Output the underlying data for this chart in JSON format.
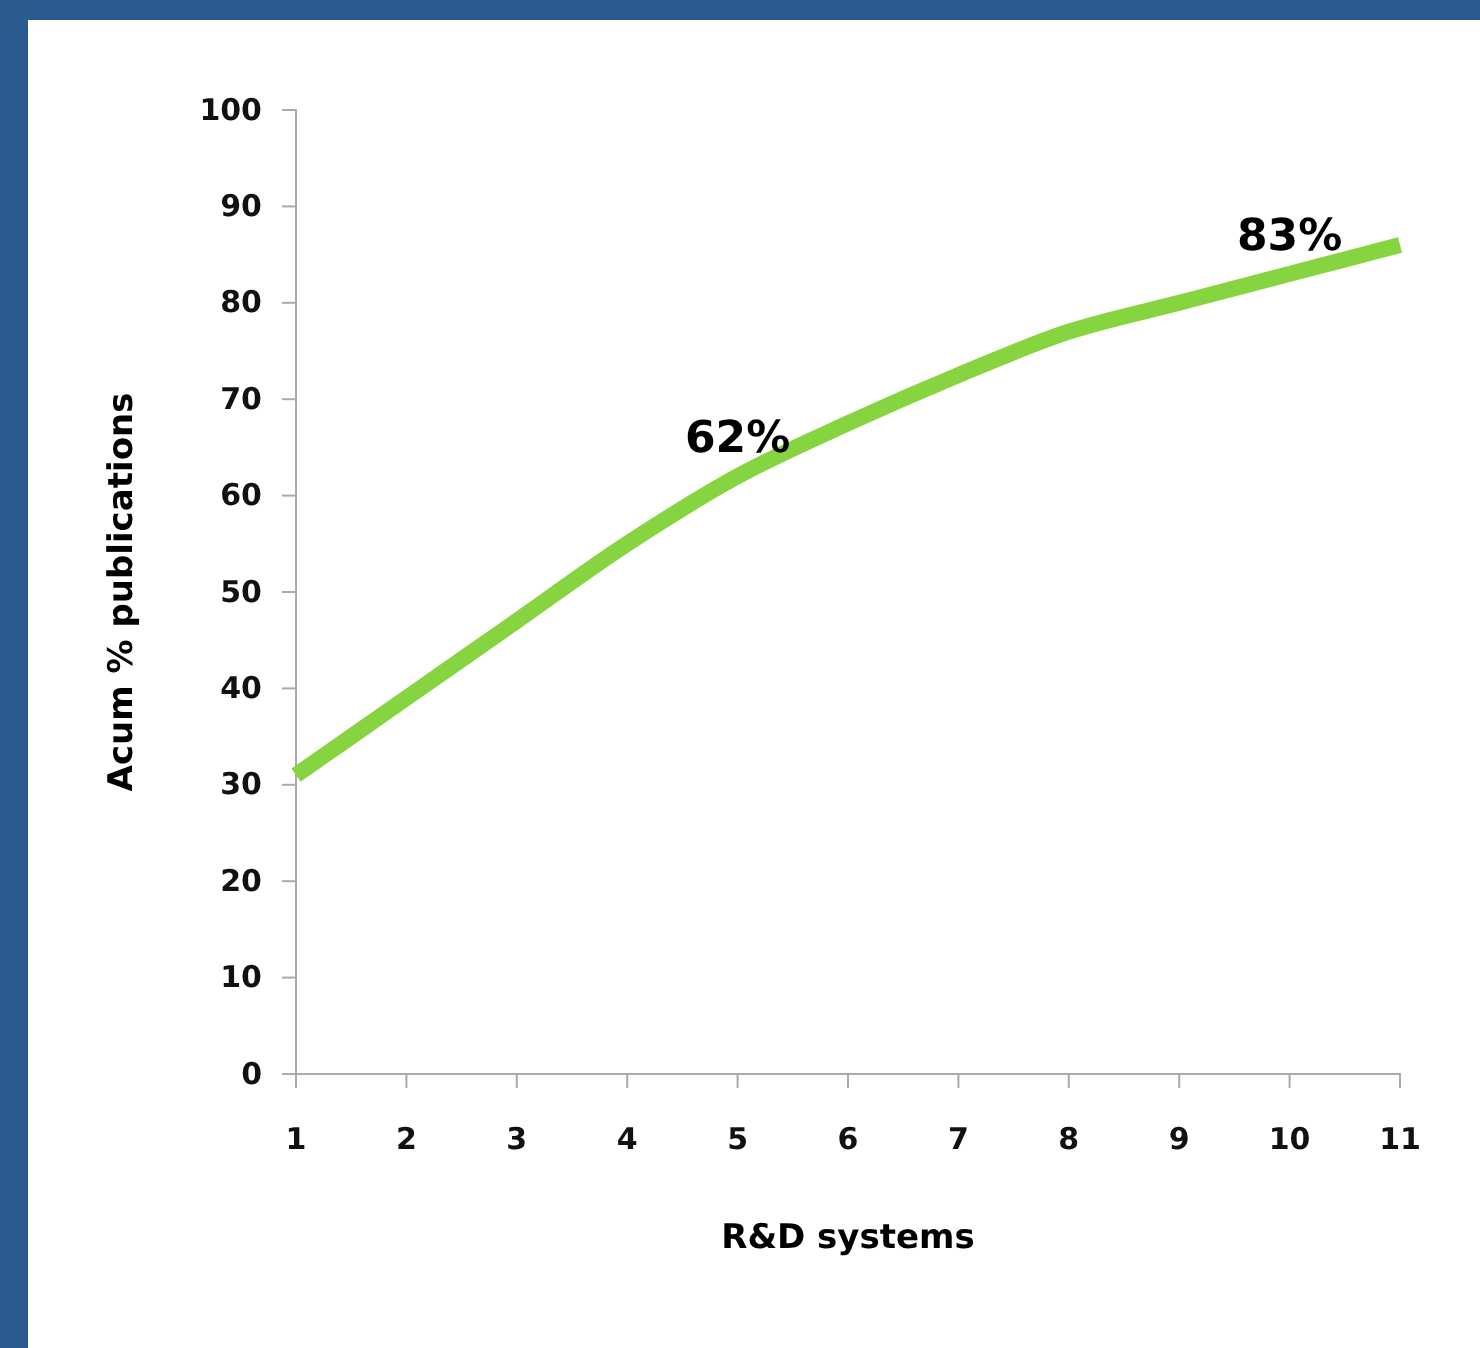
{
  "chart_data": {
    "type": "line",
    "xlabel": "R&D systems",
    "ylabel": "Acum % publications",
    "x": [
      1,
      2,
      3,
      4,
      5,
      6,
      7,
      8,
      9,
      10,
      11
    ],
    "series": [
      {
        "color": "#86d440",
        "values": [
          31,
          39,
          47,
          55,
          62,
          67.5,
          72.5,
          77,
          80,
          83,
          86
        ]
      }
    ],
    "xlim": [
      1,
      11
    ],
    "xticks": [
      1,
      2,
      3,
      4,
      5,
      6,
      7,
      8,
      9,
      10,
      11
    ],
    "ylim": [
      0,
      100
    ],
    "yticks": [
      0,
      10,
      20,
      30,
      40,
      50,
      60,
      70,
      80,
      90,
      100
    ],
    "grid": false,
    "marker": "none",
    "line_style": "solid",
    "annotations": [
      {
        "text": "62%",
        "x": 5,
        "y": 62
      },
      {
        "text": "83%",
        "x": 10,
        "y": 83
      }
    ]
  }
}
